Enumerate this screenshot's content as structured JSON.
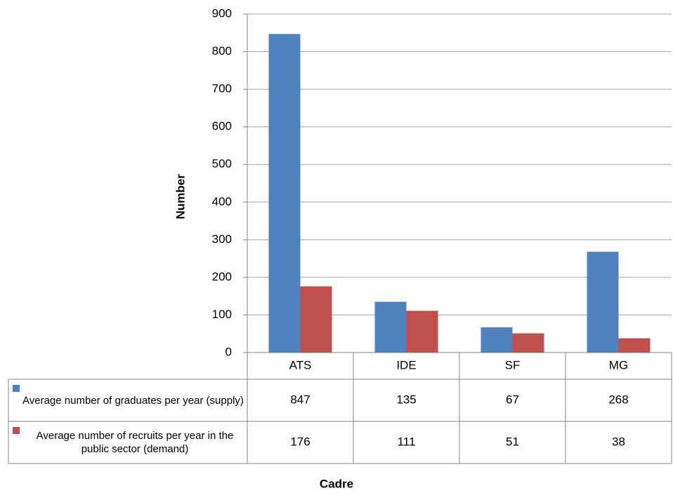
{
  "chart_data": {
    "type": "bar",
    "x_label": "Cadre",
    "y_label": "Number",
    "categories": [
      "ATS",
      "IDE",
      "SF",
      "MG"
    ],
    "series": [
      {
        "name": "Average number of graduates per year (supply)",
        "color": "#4f81bd",
        "values": [
          847,
          135,
          67,
          268
        ]
      },
      {
        "name": "Average number of recruits per year in the public sector (demand)",
        "color": "#c0504d",
        "values": [
          176,
          111,
          51,
          38
        ]
      }
    ],
    "ylim": [
      0,
      900
    ],
    "yticks": [
      0,
      100,
      200,
      300,
      400,
      500,
      600,
      700,
      800,
      900
    ],
    "grid": true
  }
}
